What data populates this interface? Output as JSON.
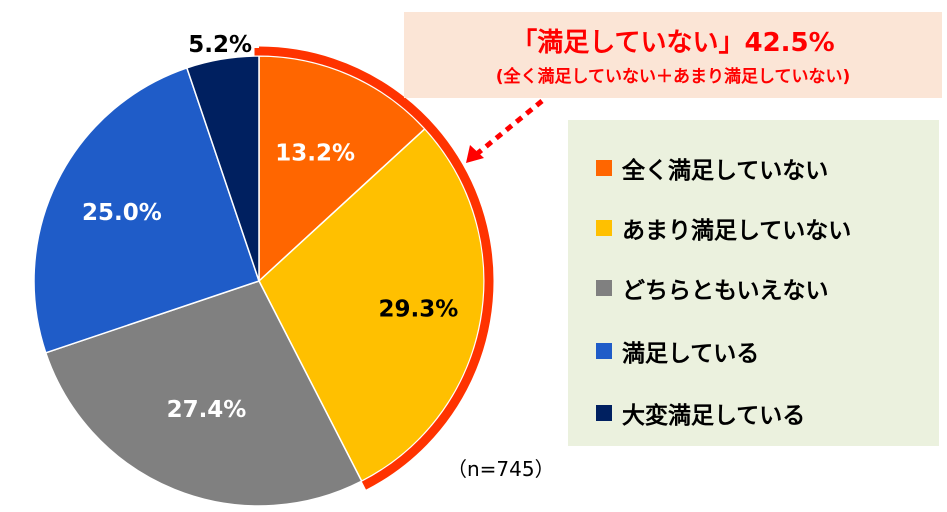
{
  "chart_data": {
    "type": "pie",
    "categories": [
      "全く満足していない",
      "あまり満足していない",
      "どちらともいえない",
      "満足している",
      "大変満足している"
    ],
    "values": [
      13.2,
      29.3,
      27.4,
      25.0,
      5.2
    ],
    "value_labels": [
      "13.2%",
      "29.3%",
      "27.4%",
      "25.0%",
      "5.2%"
    ],
    "colors": [
      "#ff6600",
      "#ffc000",
      "#808080",
      "#1f5cc8",
      "#002060"
    ],
    "label_colors": [
      "#ffffff",
      "#000000",
      "#ffffff",
      "#ffffff",
      "#000000"
    ],
    "start_angle": "12 o'clock",
    "direction": "clockwise",
    "legend_position": "right"
  },
  "callout": {
    "title": "「満足していない」42.5%",
    "subtitle": "(全く満足していない＋あまり満足していない)",
    "highlight_color": "#ff3300"
  },
  "legend": {
    "items": [
      "全く満足していない",
      "あまり満足していない",
      "どちらともいえない",
      "満足している",
      "大変満足している"
    ]
  },
  "sample_note": "（n=745）"
}
